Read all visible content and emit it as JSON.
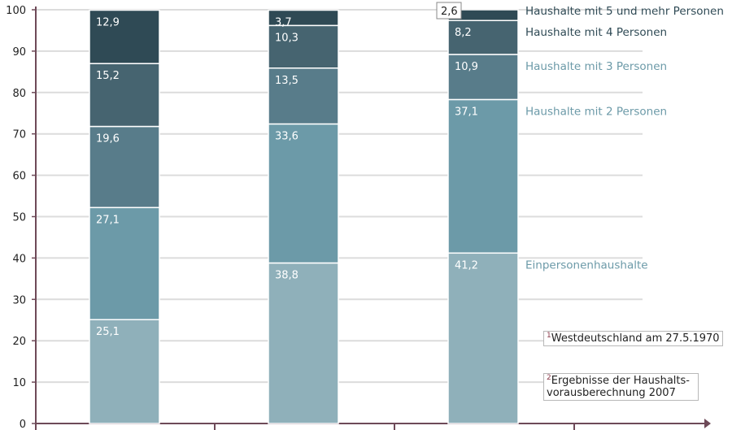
{
  "chart_data": {
    "type": "bar",
    "stacked": true,
    "categories": [
      "",
      "",
      ""
    ],
    "ylim": [
      0,
      100
    ],
    "yticks": [
      0,
      10,
      20,
      30,
      40,
      50,
      60,
      70,
      80,
      90,
      100
    ],
    "grid": true,
    "series": [
      {
        "name": "Einpersonenhaushalte",
        "values": [
          25.1,
          38.8,
          41.2
        ],
        "labels": [
          "25,1",
          "38,8",
          "41,2"
        ],
        "color": "#8fb0ba"
      },
      {
        "name": "Haushalte mit 2 Personen",
        "values": [
          27.1,
          33.6,
          37.1
        ],
        "labels": [
          "27,1",
          "33,6",
          "37,1"
        ],
        "color": "#6c9aa8"
      },
      {
        "name": "Haushalte mit 3 Personen",
        "values": [
          19.6,
          13.5,
          10.9
        ],
        "labels": [
          "19,6",
          "13,5",
          "10,9"
        ],
        "color": "#587c8a"
      },
      {
        "name": "Haushalte mit 4 Personen",
        "values": [
          15.2,
          10.3,
          8.2
        ],
        "labels": [
          "15,2",
          "10,3",
          "8,2"
        ],
        "color": "#466470"
      },
      {
        "name": "Haushalte mit 5 und mehr Personen",
        "values": [
          12.9,
          3.7,
          2.6
        ],
        "labels": [
          "12,9",
          "3,7",
          "2,6"
        ],
        "color": "#2f4a55"
      }
    ],
    "legend_placement": "right"
  },
  "footnotes": [
    {
      "mark": "1",
      "text": "Westdeutschland am 27.5.1970"
    },
    {
      "mark": "2",
      "text": "Ergebnisse der Haushalts- vorausberechnung 2007"
    }
  ],
  "colors": {
    "axis": "#6e4a58",
    "grid": "#dcdcdc",
    "tick_text": "#222222",
    "legend_dark": "#2f4a55",
    "legend_light": "#6c9aa8"
  }
}
